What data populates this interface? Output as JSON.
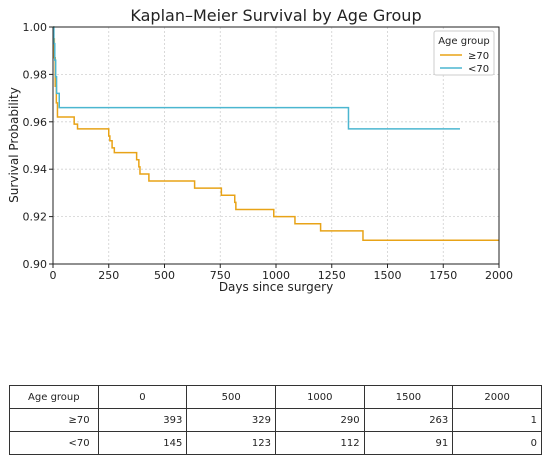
{
  "chart_data": {
    "type": "line",
    "title": "Kaplan–Meier Survival by Age Group",
    "xlabel": "Days since surgery",
    "ylabel": "Survival Probability",
    "xlim": [
      0,
      2000
    ],
    "ylim": [
      0.9,
      1.0
    ],
    "xticks": [
      "0",
      "250",
      "500",
      "750",
      "1000",
      "1250",
      "1500",
      "1750",
      "2000"
    ],
    "yticks": [
      "0.90",
      "0.92",
      "0.94",
      "0.96",
      "0.98",
      "1.00"
    ],
    "grid": true,
    "legend": {
      "title": "Age group",
      "position": "top-right"
    },
    "series": [
      {
        "name": "≥70",
        "color": "#e8a317",
        "steps": [
          [
            0,
            1.0
          ],
          [
            3,
            0.995
          ],
          [
            6,
            0.987
          ],
          [
            10,
            0.975
          ],
          [
            15,
            0.968
          ],
          [
            20,
            0.962
          ],
          [
            95,
            0.959
          ],
          [
            110,
            0.957
          ],
          [
            250,
            0.954
          ],
          [
            255,
            0.952
          ],
          [
            265,
            0.949
          ],
          [
            275,
            0.947
          ],
          [
            375,
            0.944
          ],
          [
            385,
            0.941
          ],
          [
            390,
            0.938
          ],
          [
            430,
            0.935
          ],
          [
            635,
            0.932
          ],
          [
            755,
            0.929
          ],
          [
            815,
            0.926
          ],
          [
            820,
            0.923
          ],
          [
            990,
            0.92
          ],
          [
            1085,
            0.917
          ],
          [
            1200,
            0.914
          ],
          [
            1390,
            0.91
          ],
          [
            2000,
            0.91
          ]
        ]
      },
      {
        "name": "<70",
        "color": "#4bb6d0",
        "steps": [
          [
            0,
            1.0
          ],
          [
            4,
            0.993
          ],
          [
            8,
            0.986
          ],
          [
            12,
            0.979
          ],
          [
            16,
            0.972
          ],
          [
            28,
            0.966
          ],
          [
            1325,
            0.957
          ],
          [
            1825,
            0.957
          ]
        ]
      }
    ]
  },
  "risk_table": {
    "header": [
      "Age group",
      "0",
      "500",
      "1000",
      "1500",
      "2000"
    ],
    "rows": [
      {
        "group": "≥70",
        "values": [
          "393",
          "329",
          "290",
          "263",
          "1"
        ]
      },
      {
        "group": "<70",
        "values": [
          "145",
          "123",
          "112",
          "91",
          "0"
        ]
      }
    ]
  }
}
